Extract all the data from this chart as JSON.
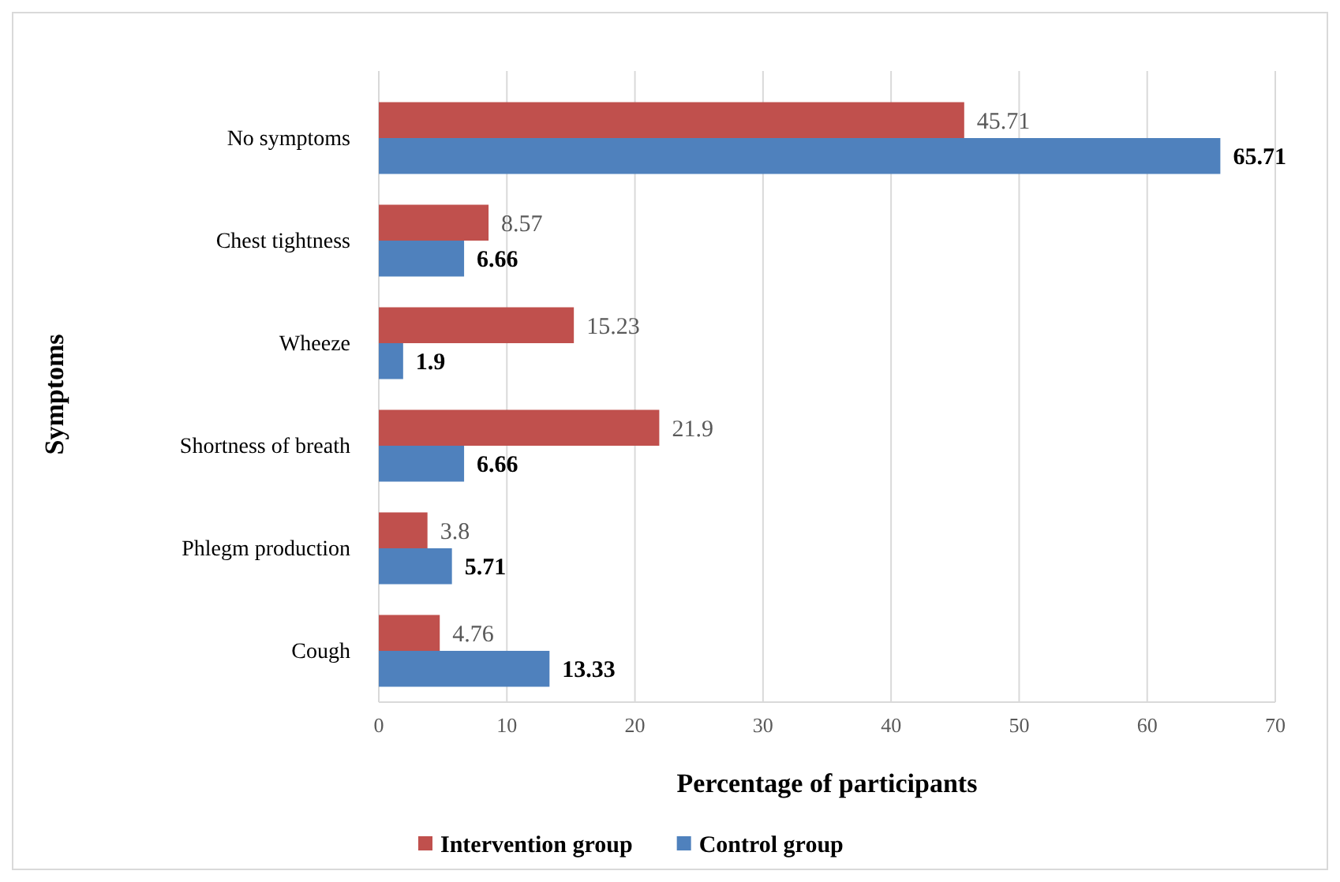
{
  "chart_data": {
    "type": "bar",
    "orientation": "horizontal",
    "xlabel": "Percentage of participants",
    "ylabel": "Symptoms",
    "categories": [
      "No symptoms",
      "Chest tightness",
      "Wheeze",
      "Shortness of breath",
      "Phlegm production",
      "Cough"
    ],
    "series": [
      {
        "name": "Intervention group",
        "color": "#c0504d",
        "values": [
          45.71,
          8.57,
          15.23,
          21.9,
          3.8,
          4.76
        ]
      },
      {
        "name": "Control group",
        "color": "#4f81bd",
        "values": [
          65.71,
          6.66,
          1.9,
          6.66,
          5.71,
          13.33
        ]
      }
    ],
    "xlim": [
      0,
      70
    ],
    "xticks": [
      0,
      10,
      20,
      30,
      40,
      50,
      60,
      70
    ],
    "grid": "x",
    "legend": "bottom",
    "data_labels": true
  }
}
